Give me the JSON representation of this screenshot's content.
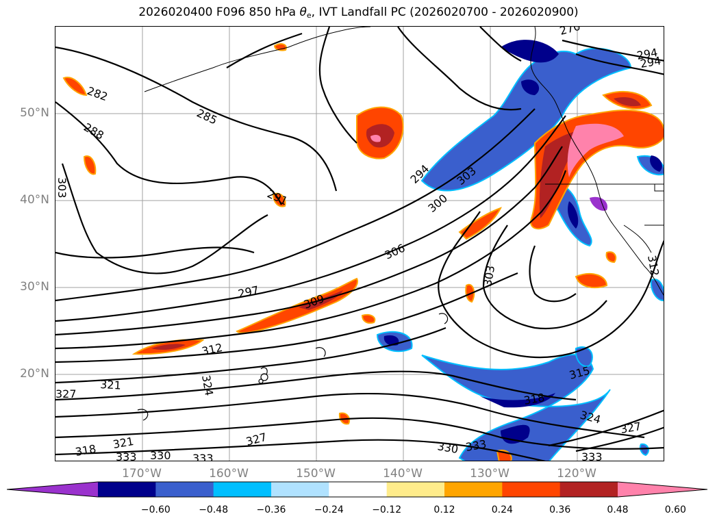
{
  "title": {
    "prefix": "2026020400 F096 850 hPa ",
    "theta": "θ",
    "theta_sub": "e",
    "suffix": ", IVT Landfall PC (2026020700 - 2026020900)"
  },
  "map": {
    "lat_labels": [
      "50°N",
      "40°N",
      "30°N",
      "20°N"
    ],
    "lon_labels": [
      "170°W",
      "160°W",
      "150°W",
      "140°W",
      "130°W",
      "120°W"
    ],
    "contour_labels": [
      "270",
      "282",
      "285",
      "288",
      "291",
      "294",
      "294",
      "294",
      "297",
      "300",
      "303",
      "303",
      "303",
      "306",
      "309",
      "312",
      "312",
      "315",
      "318",
      "318",
      "321",
      "321",
      "324",
      "324",
      "327",
      "327",
      "327",
      "330",
      "330",
      "333",
      "333",
      "333",
      "333"
    ]
  },
  "colorbar": {
    "colors": [
      "#9a32cd",
      "#00008b",
      "#3a5fcd",
      "#00bfff",
      "#b0e2ff",
      "#ffffff",
      "#ffec8b",
      "#ffa500",
      "#ff4500",
      "#b22222",
      "#ff82ab"
    ],
    "ticks": [
      "−0.60",
      "−0.48",
      "−0.36",
      "−0.24",
      "−0.12",
      "0.12",
      "0.24",
      "0.36",
      "0.48",
      "0.60"
    ]
  }
}
